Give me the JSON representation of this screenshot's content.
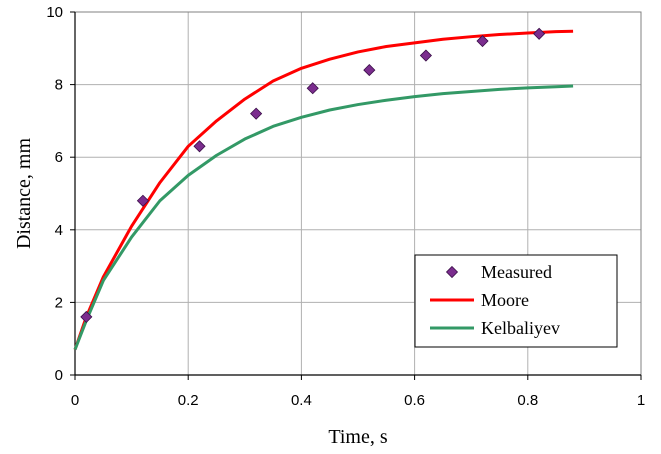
{
  "chart_data": {
    "type": "line",
    "xlabel": "Time, s",
    "ylabel": "Distance, mm",
    "xlim": [
      0,
      1
    ],
    "ylim": [
      0,
      10
    ],
    "x_ticks": [
      "0",
      "0.2",
      "0.4",
      "0.6",
      "0.8",
      "1"
    ],
    "y_ticks": [
      "0",
      "2",
      "4",
      "6",
      "8",
      "10"
    ],
    "grid": true,
    "legend_position": "bottom-right",
    "series": [
      {
        "name": "Measured",
        "kind": "scatter",
        "marker": "diamond",
        "color": "#7B2D8E",
        "x": [
          0.02,
          0.12,
          0.22,
          0.32,
          0.42,
          0.52,
          0.62,
          0.72,
          0.82
        ],
        "y": [
          1.6,
          4.8,
          6.3,
          7.2,
          7.9,
          8.4,
          8.8,
          9.2,
          9.4
        ]
      },
      {
        "name": "Moore",
        "kind": "line",
        "color": "#FF0000",
        "x": [
          0.0,
          0.02,
          0.05,
          0.1,
          0.15,
          0.2,
          0.25,
          0.3,
          0.35,
          0.4,
          0.45,
          0.5,
          0.55,
          0.6,
          0.65,
          0.7,
          0.75,
          0.8,
          0.85,
          0.88
        ],
        "y": [
          0.7,
          1.6,
          2.7,
          4.1,
          5.3,
          6.3,
          7.0,
          7.6,
          8.1,
          8.45,
          8.7,
          8.9,
          9.05,
          9.15,
          9.25,
          9.32,
          9.38,
          9.42,
          9.46,
          9.47
        ]
      },
      {
        "name": "Kelbaliyev",
        "kind": "line",
        "color": "#339966",
        "x": [
          0.0,
          0.02,
          0.05,
          0.1,
          0.15,
          0.2,
          0.25,
          0.3,
          0.35,
          0.4,
          0.45,
          0.5,
          0.55,
          0.6,
          0.65,
          0.7,
          0.75,
          0.8,
          0.85,
          0.88
        ],
        "y": [
          0.7,
          1.5,
          2.6,
          3.8,
          4.8,
          5.5,
          6.05,
          6.5,
          6.85,
          7.1,
          7.3,
          7.45,
          7.57,
          7.67,
          7.75,
          7.81,
          7.87,
          7.91,
          7.94,
          7.96
        ]
      }
    ]
  }
}
